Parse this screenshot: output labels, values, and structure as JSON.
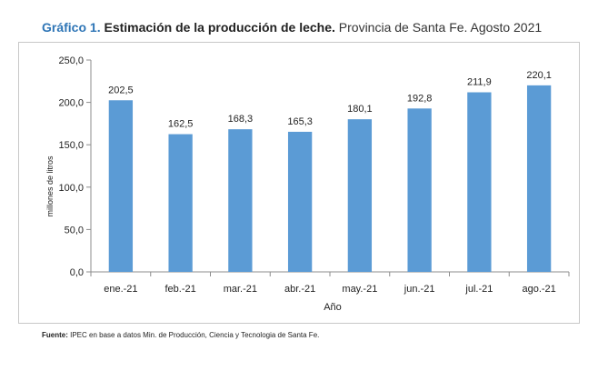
{
  "title": {
    "label": "Gráfico 1.",
    "main": "Estimación de la producción de leche.",
    "sub": "Provincia de Santa Fe. Agosto 2021"
  },
  "source": {
    "label": "Fuente:",
    "text": "IPEC en base a datos Min. de Producción, Ciencia y Tecnologia de Santa Fe."
  },
  "chart_data": {
    "type": "bar",
    "title": "Estimación de la producción de leche. Provincia de Santa Fe. Agosto 2021",
    "xlabel": "Año",
    "ylabel": "millones de litros",
    "categories": [
      "ene.-21",
      "feb.-21",
      "mar.-21",
      "abr.-21",
      "may.-21",
      "jun.-21",
      "jul.-21",
      "ago.-21"
    ],
    "values": [
      202.5,
      162.5,
      168.3,
      165.3,
      180.1,
      192.8,
      211.9,
      220.1
    ],
    "value_labels": [
      "202,5",
      "162,5",
      "168,3",
      "165,3",
      "180,1",
      "192,8",
      "211,9",
      "220,1"
    ],
    "ylim": [
      0,
      250
    ],
    "yticks": [
      0,
      50,
      100,
      150,
      200,
      250
    ],
    "ytick_labels": [
      "0,0",
      "50,0",
      "100,0",
      "150,0",
      "200,0",
      "250,0"
    ],
    "bar_color": "#5b9bd5",
    "grid": false,
    "legend": "none"
  }
}
